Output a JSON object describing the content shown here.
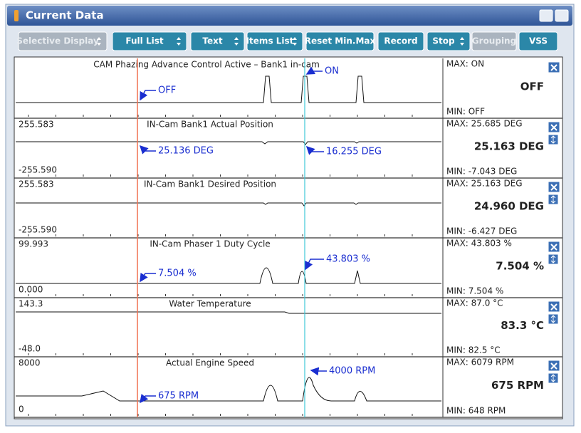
{
  "window": {
    "title": "Current Data"
  },
  "toolbar": [
    "Selective Display",
    "Full List",
    "Text",
    "Items List",
    "Reset Min.Max",
    "Record",
    "Stop",
    "Grouping",
    "VSS"
  ],
  "panels": [
    {
      "title": "CAM Phazing Advance Control Active – Bank1 in-cam",
      "annotations": [
        "OFF",
        "ON"
      ],
      "max": "MAX: ON",
      "current": "OFF",
      "min": "MIN: OFF"
    },
    {
      "top": "255.583",
      "bottom": "-255.590",
      "title": "IN-Cam Bank1 Actual Position",
      "annotations": [
        "25.136 DEG",
        "16.255 DEG"
      ],
      "max": "MAX: 25.685 DEG",
      "current": "25.163 DEG",
      "min": "MIN: -7.043 DEG"
    },
    {
      "top": "255.583",
      "bottom": "-255.590",
      "title": "IN-Cam Bank1 Desired Position",
      "max": "MAX: 25.163 DEG",
      "current": "24.960 DEG",
      "min": "MIN: -6.427 DEG"
    },
    {
      "top": "99.993",
      "bottom": "0.000",
      "title": "IN-Cam Phaser 1 Duty Cycle",
      "annotations": [
        "7.504 %",
        "43.803 %"
      ],
      "max": "MAX: 43.803 %",
      "current": "7.504 %",
      "min": "MIN: 7.504 %"
    },
    {
      "top": "143.3",
      "bottom": "-48.0",
      "title": "Water Temperature",
      "max": "MAX: 87.0 °C",
      "current": "83.3 °C",
      "min": "MIN: 82.5 °C"
    },
    {
      "top": "8000",
      "bottom": "0",
      "title": "Actual Engine Speed",
      "annotations": [
        "675 RPM",
        "4000 RPM"
      ],
      "max": "MAX: 6079 RPM",
      "current": "675 RPM",
      "min": "MIN: 648 RPM"
    }
  ]
}
